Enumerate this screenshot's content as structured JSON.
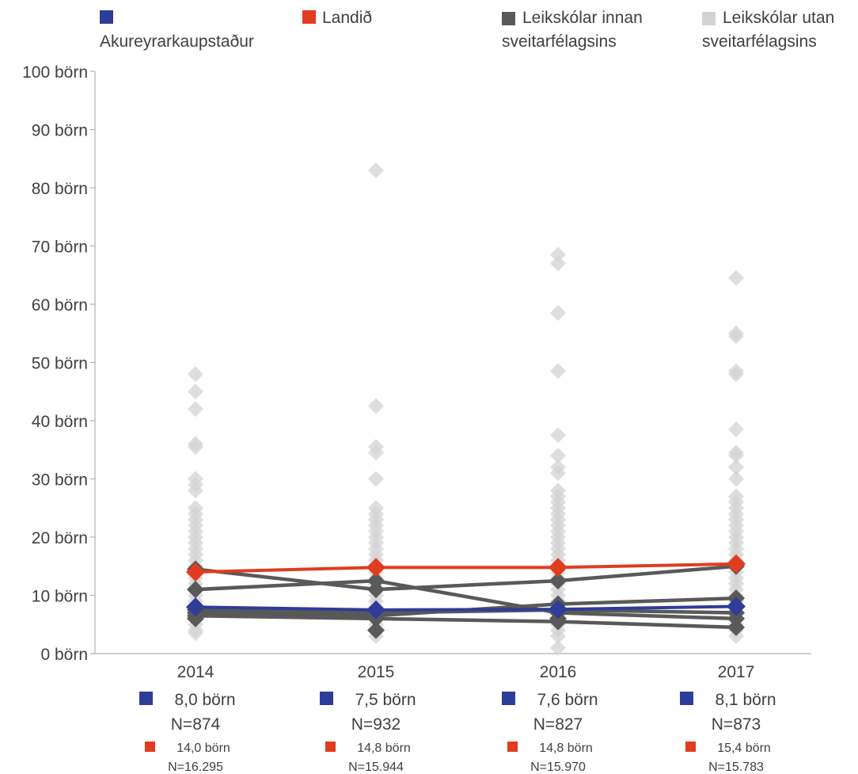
{
  "colors": {
    "akureyri": "#2E3D98",
    "landid": "#E03C1F",
    "innan": "#595959",
    "utan": "#D3D3D3",
    "axis": "#B0B0B0",
    "text": "#404040"
  },
  "legend": [
    {
      "key": "akureyri",
      "label": "Akureyrarkaupstaður"
    },
    {
      "key": "landid",
      "label": "Landið"
    },
    {
      "key": "innan",
      "label": "Leikskólar innan sveitarfélagsins"
    },
    {
      "key": "utan",
      "label": "Leikskólar utan sveitarfélagsins"
    }
  ],
  "chart_data": {
    "type": "line",
    "categories": [
      "2014",
      "2015",
      "2016",
      "2017"
    ],
    "y_unit": "börn",
    "ylim": [
      0,
      100
    ],
    "y_ticks": [
      0,
      10,
      20,
      30,
      40,
      50,
      60,
      70,
      80,
      90,
      100
    ],
    "y_tick_labels": [
      "0 börn",
      "10 börn",
      "20 börn",
      "30 börn",
      "40 börn",
      "50 börn",
      "60 börn",
      "70 börn",
      "80 börn",
      "90 börn",
      "100 börn"
    ],
    "grid": false,
    "legend_position": "top",
    "series": [
      {
        "name": "Akureyrarkaupstaður",
        "key": "akureyri",
        "values": [
          8.0,
          7.5,
          7.6,
          8.1
        ]
      },
      {
        "name": "Landið",
        "key": "landid",
        "values": [
          14.0,
          14.8,
          14.8,
          15.4
        ]
      }
    ],
    "innan_lines": [
      [
        14.5,
        11.0,
        12.5,
        15.0
      ],
      [
        11.0,
        12.5,
        7.0,
        6.0
      ],
      [
        7.0,
        6.5,
        8.5,
        9.5
      ],
      [
        6.5,
        6.0,
        5.5,
        4.5
      ],
      [
        7.5,
        7.0,
        7.5,
        7.0
      ]
    ],
    "utan_points": [
      [
        48,
        45,
        42,
        36,
        35.5,
        30,
        29,
        28,
        25,
        24,
        23,
        22,
        21,
        20,
        19,
        18,
        17,
        16,
        15,
        14,
        13,
        12,
        11,
        10,
        9,
        8,
        7,
        6,
        5,
        4,
        3.5
      ],
      [
        83,
        42.5,
        35.5,
        34.5,
        30,
        25,
        24,
        23,
        22,
        21,
        20,
        19,
        18,
        17,
        16,
        15,
        14,
        13,
        12,
        11,
        10,
        9,
        8,
        7,
        6,
        5,
        4,
        3
      ],
      [
        68.5,
        67,
        58.5,
        48.5,
        37.5,
        34,
        32,
        31,
        28,
        27,
        26,
        25,
        24,
        23,
        22,
        21,
        20,
        19,
        18,
        17,
        16,
        15,
        14,
        13,
        12,
        11,
        10,
        9,
        8,
        7,
        6,
        5,
        4,
        3,
        1
      ],
      [
        64.5,
        55,
        54.5,
        48.5,
        48,
        38.5,
        34.5,
        34,
        32,
        30,
        27,
        26,
        25,
        24,
        23,
        22,
        21,
        20,
        19,
        18,
        17,
        16,
        15,
        14,
        13,
        12,
        11,
        10,
        9,
        8,
        7,
        6,
        5,
        4,
        3
      ]
    ],
    "innan_points": [
      [
        14.5,
        11.0,
        7.0,
        6.5,
        7.5,
        6.0
      ],
      [
        11.0,
        12.5,
        6.5,
        6.0,
        4.0,
        7.0
      ],
      [
        12.5,
        7.0,
        8.5,
        5.5,
        7.5,
        6.0
      ],
      [
        15.0,
        9.5,
        6.0,
        4.5,
        7.0
      ]
    ],
    "footer": [
      {
        "akureyri_value": "8,0 börn",
        "akureyri_n": "N=874",
        "landid_value": "14,0 börn",
        "landid_n": "N=16.295"
      },
      {
        "akureyri_value": "7,5 börn",
        "akureyri_n": "N=932",
        "landid_value": "14,8 börn",
        "landid_n": "N=15.944"
      },
      {
        "akureyri_value": "7,6 börn",
        "akureyri_n": "N=827",
        "landid_value": "14,8 börn",
        "landid_n": "N=15.970"
      },
      {
        "akureyri_value": "8,1 börn",
        "akureyri_n": "N=873",
        "landid_value": "15,4 börn",
        "landid_n": "N=15.783"
      }
    ]
  }
}
